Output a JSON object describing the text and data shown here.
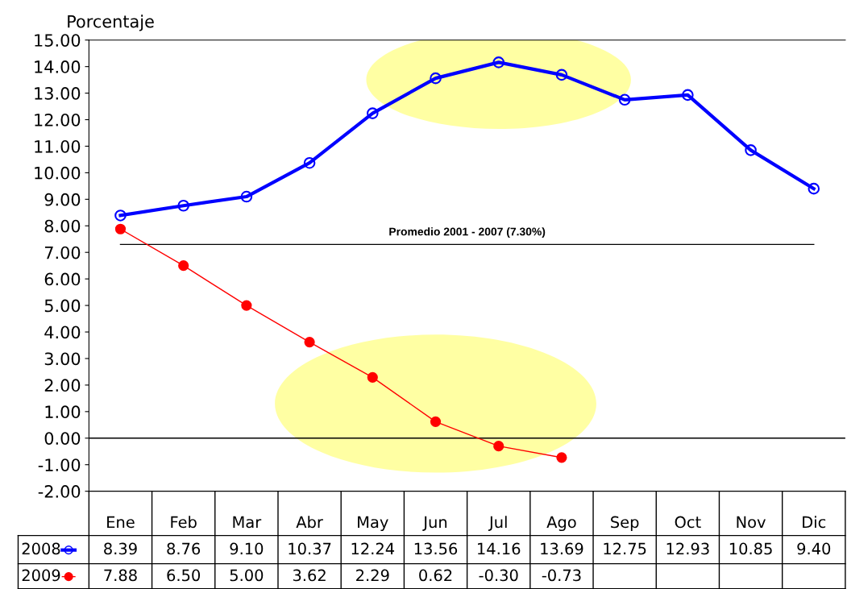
{
  "chart_data": {
    "type": "line",
    "ylabel": "Porcentaje",
    "categories": [
      "Ene",
      "Feb",
      "Mar",
      "Abr",
      "May",
      "Jun",
      "Jul",
      "Ago",
      "Sep",
      "Oct",
      "Nov",
      "Dic"
    ],
    "series": [
      {
        "name": "2008",
        "color": "#0000ff",
        "marker": "circle",
        "values": [
          8.39,
          8.76,
          9.1,
          10.37,
          12.24,
          13.56,
          14.16,
          13.69,
          12.75,
          12.93,
          10.85,
          9.4
        ],
        "value_labels": [
          "8.39",
          "8.76",
          "9.10",
          "10.37",
          "12.24",
          "13.56",
          "14.16",
          "13.69",
          "12.75",
          "12.93",
          "10.85",
          "9.40"
        ]
      },
      {
        "name": "2009",
        "color": "#ff0000",
        "marker": "circle",
        "values": [
          7.88,
          6.5,
          5.0,
          3.62,
          2.29,
          0.62,
          -0.3,
          -0.73,
          null,
          null,
          null,
          null
        ],
        "value_labels": [
          "7.88",
          "6.50",
          "5.00",
          "3.62",
          "2.29",
          "0.62",
          "-0.30",
          "-0.73",
          null,
          null,
          null,
          null
        ]
      }
    ],
    "ylim": [
      -2,
      15
    ],
    "yticks": [
      {
        "value": -2,
        "label": "-2.00"
      },
      {
        "value": -1,
        "label": "-1.00"
      },
      {
        "value": 0,
        "label": "0.00"
      },
      {
        "value": 1,
        "label": "1.00"
      },
      {
        "value": 2,
        "label": "2.00"
      },
      {
        "value": 3,
        "label": "3.00"
      },
      {
        "value": 4,
        "label": "4.00"
      },
      {
        "value": 5,
        "label": "5.00"
      },
      {
        "value": 6,
        "label": "6.00"
      },
      {
        "value": 7,
        "label": "7.00"
      },
      {
        "value": 8,
        "label": "8.00"
      },
      {
        "value": 9,
        "label": "9.00"
      },
      {
        "value": 10,
        "label": "10.00"
      },
      {
        "value": 11,
        "label": "11.00"
      },
      {
        "value": 12,
        "label": "12.00"
      },
      {
        "value": 13,
        "label": "13.00"
      },
      {
        "value": 14,
        "label": "14.00"
      },
      {
        "value": 15,
        "label": "15.00"
      }
    ],
    "ref_lines": [
      {
        "axis": "y",
        "value": 7.3,
        "label": "Promedio 2001 - 2007 (7.30%)",
        "color": "#000000"
      },
      {
        "axis": "y",
        "value": 0,
        "label": null,
        "color": "#000000"
      }
    ],
    "grid": false,
    "legend": "bottom left"
  }
}
